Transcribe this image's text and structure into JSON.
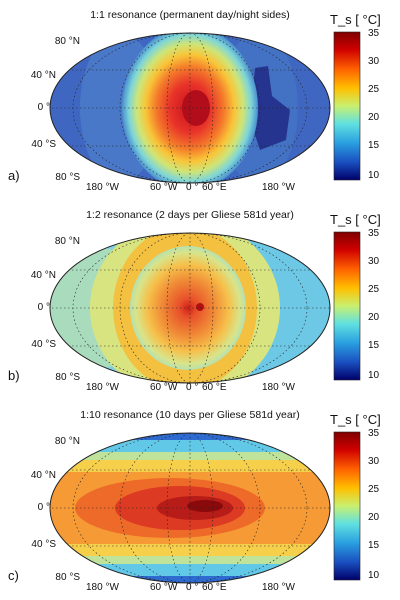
{
  "panels": [
    {
      "id": "a",
      "label": "a)",
      "title": "1:1 resonance (permanent day/night sides)",
      "lat_labels": [
        "80 °N",
        "40 °N",
        "0 °",
        "40 °S",
        "80 °S"
      ],
      "lon_labels": [
        "180 °W",
        "60 °W",
        "0 °",
        "60 °E",
        "180 °W"
      ]
    },
    {
      "id": "b",
      "label": "b)",
      "title": "1:2 resonance (2 days per Gliese 581d year)",
      "lat_labels": [
        "80 °N",
        "40 °N",
        "0 °",
        "40 °S",
        "80 °S"
      ],
      "lon_labels": [
        "180 °W",
        "60 °W",
        "0 °",
        "60 °E",
        "180 °W"
      ]
    },
    {
      "id": "c",
      "label": "c)",
      "title": "1:10 resonance (10 days per Gliese 581d year)",
      "lat_labels": [
        "80 °N",
        "40 °N",
        "0 °",
        "40 °S",
        "80 °S"
      ],
      "lon_labels": [
        "180 °W",
        "60 °W",
        "0 °",
        "60 °E",
        "180 °W"
      ]
    }
  ],
  "colorbar": {
    "title": "T_s [ °C]",
    "ticks": [
      "35",
      "30",
      "25",
      "20",
      "15",
      "10"
    ],
    "range": [
      9,
      35
    ],
    "colors": [
      "#00007f",
      "#0000ff",
      "#007fff",
      "#00ffff",
      "#7fff7f",
      "#ffff00",
      "#ff7f00",
      "#ff0000",
      "#7f0000"
    ]
  }
}
